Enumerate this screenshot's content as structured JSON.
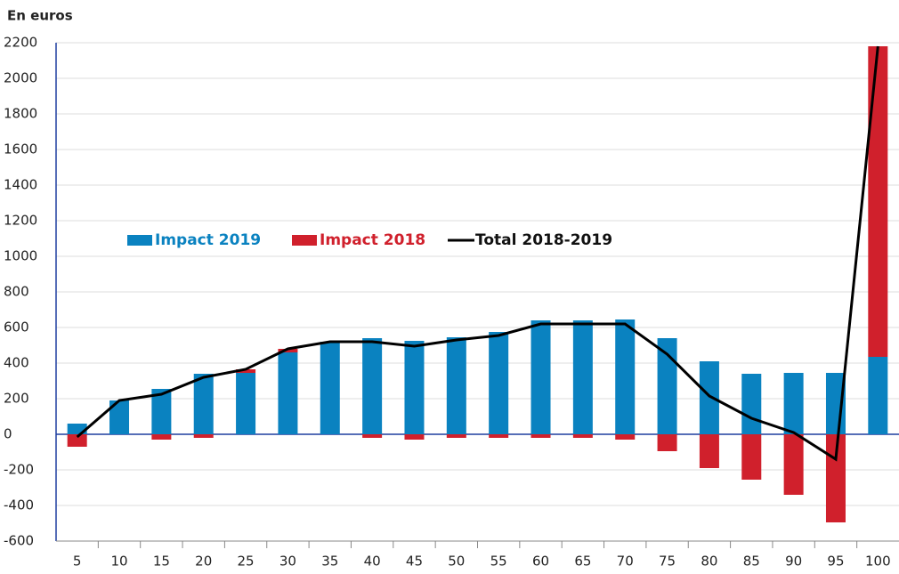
{
  "chart_data": {
    "type": "bar",
    "title": "En euros",
    "categories": [
      "5",
      "10",
      "15",
      "20",
      "25",
      "30",
      "35",
      "40",
      "45",
      "50",
      "55",
      "60",
      "65",
      "70",
      "75",
      "80",
      "85",
      "90",
      "95",
      "100"
    ],
    "series": [
      {
        "name": "Impact 2019",
        "color": "#0a82c0",
        "type": "bar",
        "values": [
          60,
          190,
          255,
          340,
          345,
          460,
          520,
          540,
          525,
          545,
          575,
          640,
          640,
          645,
          540,
          410,
          340,
          345,
          345,
          435
        ]
      },
      {
        "name": "Impact 2018",
        "color": "#d0202c",
        "type": "bar",
        "values": [
          -70,
          0,
          -30,
          -20,
          20,
          20,
          0,
          -20,
          -30,
          -20,
          -20,
          -20,
          -20,
          -30,
          -95,
          -190,
          -255,
          -340,
          -495,
          1745
        ]
      },
      {
        "name": "Total 2018-2019",
        "color": "#000000",
        "type": "line",
        "values": [
          -15,
          190,
          225,
          320,
          365,
          480,
          520,
          520,
          495,
          530,
          555,
          620,
          620,
          620,
          450,
          215,
          90,
          10,
          -140,
          2180
        ]
      }
    ],
    "ylim": [
      -600,
      2200
    ],
    "yticks": [
      -600,
      -400,
      -200,
      0,
      200,
      400,
      600,
      800,
      1000,
      1200,
      1400,
      1600,
      1800,
      2000,
      2200
    ],
    "grid": true
  }
}
